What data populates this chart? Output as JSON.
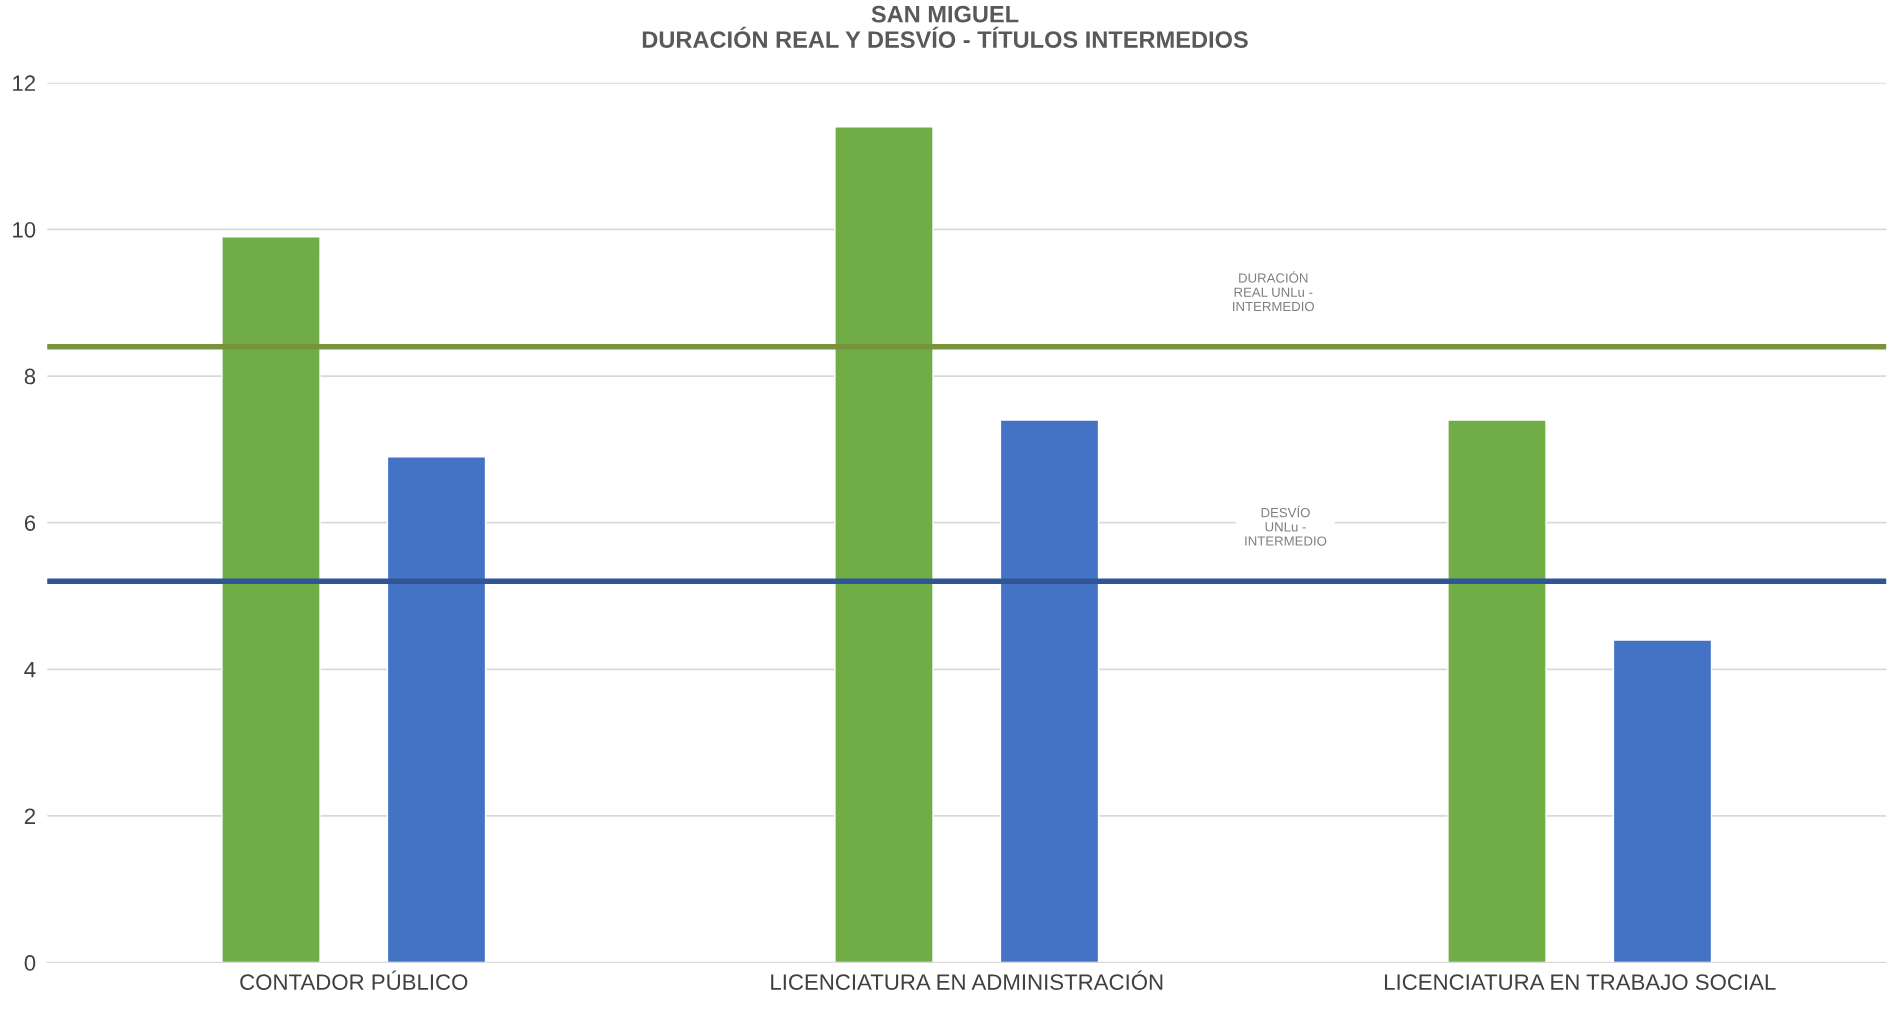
{
  "chart_data": {
    "type": "bar",
    "title": "SAN MIGUEL",
    "subtitle": "DURACIÓN REAL Y DESVÍO - TÍTULOS INTERMEDIOS",
    "categories": [
      "CONTADOR PÚBLICO",
      "LICENCIATURA EN ADMINISTRACIÓN",
      "LICENCIATURA EN TRABAJO SOCIAL"
    ],
    "series": [
      {
        "color": "#70ad47",
        "values": [
          9.9,
          11.4,
          7.4
        ]
      },
      {
        "color": "#4472c4",
        "values": [
          6.9,
          7.4,
          4.4
        ]
      }
    ],
    "ylim": [
      0,
      12
    ],
    "yticks": [
      0,
      2,
      4,
      6,
      8,
      10,
      12
    ],
    "grid": "y",
    "legend": false,
    "ref_lines": [
      {
        "axis": "y",
        "value": 8.4,
        "label": "DURACIÓN\nREAL UNLu -\nINTERMEDIO",
        "color": "#77933c"
      },
      {
        "axis": "y",
        "value": 5.2,
        "label": "DESVÍO\nUNLu -\nINTERMEDIO",
        "color": "#2f5597"
      }
    ]
  }
}
